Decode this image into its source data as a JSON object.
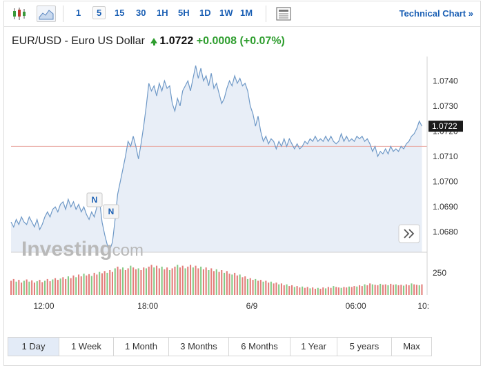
{
  "toolbar": {
    "candle_icon": "candlestick-icon",
    "area_icon": "area-chart-icon",
    "timeframes": [
      "1",
      "5",
      "15",
      "30",
      "1H",
      "5H",
      "1D",
      "1W",
      "1M"
    ],
    "active_timeframe": "5",
    "news_icon": "news-icon",
    "technical_label": "Technical Chart",
    "technical_arrow": "»"
  },
  "header": {
    "instrument": "EUR/USD - Euro US Dollar",
    "price": "1.0722",
    "change": "+0.0008",
    "change_pct": "(+0.07%)",
    "up_color": "#2f9e2f"
  },
  "watermark": {
    "brand": "Investing",
    "suffix": ".com"
  },
  "markers": [
    "N",
    "N"
  ],
  "expand_icon": "double-chevron-right-icon",
  "ranges": [
    "1 Day",
    "1 Week",
    "1 Month",
    "3 Months",
    "6 Months",
    "1 Year",
    "5 years",
    "Max"
  ],
  "active_range": "1 Day",
  "chart_data": {
    "type": "area",
    "title": "",
    "xlabel": "",
    "ylabel": "",
    "ylim": [
      1.0672,
      1.0748
    ],
    "y_ticks": [
      "1.0740",
      "1.0730",
      "1.0720",
      "1.0710",
      "1.0700",
      "1.0690",
      "1.0680"
    ],
    "x_ticks": [
      "12:00",
      "18:00",
      "6/9",
      "06:00",
      "10:"
    ],
    "x_tick_positions": [
      6.3,
      26.3,
      46.3,
      66.3,
      79.3
    ],
    "x_range": [
      0,
      80
    ],
    "current_price": 1.0722,
    "previous_close": 1.0714,
    "previous_close_color": "#e8a7a0",
    "series_color": "#6f99c7",
    "fill_color": "#e8eef7",
    "points": [
      [
        0,
        1.0684
      ],
      [
        0.5,
        1.0682
      ],
      [
        1,
        1.0685
      ],
      [
        1.5,
        1.0683
      ],
      [
        2,
        1.0686
      ],
      [
        2.5,
        1.0684
      ],
      [
        3,
        1.0683
      ],
      [
        3.5,
        1.0686
      ],
      [
        4,
        1.0684
      ],
      [
        4.5,
        1.0682
      ],
      [
        5,
        1.0685
      ],
      [
        5.5,
        1.0681
      ],
      [
        6,
        1.0683
      ],
      [
        6.5,
        1.0686
      ],
      [
        7,
        1.0688
      ],
      [
        7.5,
        1.0686
      ],
      [
        8,
        1.0689
      ],
      [
        8.5,
        1.069
      ],
      [
        9,
        1.0688
      ],
      [
        9.5,
        1.0691
      ],
      [
        10,
        1.0692
      ],
      [
        10.5,
        1.0689
      ],
      [
        11,
        1.0693
      ],
      [
        11.5,
        1.069
      ],
      [
        12,
        1.0692
      ],
      [
        12.5,
        1.0689
      ],
      [
        13,
        1.0691
      ],
      [
        13.5,
        1.0688
      ],
      [
        14,
        1.069
      ],
      [
        14.5,
        1.0687
      ],
      [
        15,
        1.0685
      ],
      [
        15.5,
        1.0688
      ],
      [
        16,
        1.0686
      ],
      [
        16.5,
        1.069
      ],
      [
        17,
        1.0693
      ],
      [
        17.5,
        1.0684
      ],
      [
        18,
        1.0679
      ],
      [
        18.5,
        1.0675
      ],
      [
        19,
        1.0673
      ],
      [
        19.5,
        1.0676
      ],
      [
        20,
        1.0685
      ],
      [
        20.5,
        1.0695
      ],
      [
        21,
        1.07
      ],
      [
        21.5,
        1.0705
      ],
      [
        22,
        1.071
      ],
      [
        22.5,
        1.0716
      ],
      [
        23,
        1.0714
      ],
      [
        23.5,
        1.0718
      ],
      [
        24,
        1.0714
      ],
      [
        24.5,
        1.0709
      ],
      [
        25,
        1.0715
      ],
      [
        25.5,
        1.0722
      ],
      [
        26,
        1.073
      ],
      [
        26.5,
        1.0739
      ],
      [
        27,
        1.0736
      ],
      [
        27.5,
        1.0738
      ],
      [
        28,
        1.0734
      ],
      [
        28.5,
        1.0739
      ],
      [
        29,
        1.0736
      ],
      [
        29.5,
        1.074
      ],
      [
        30,
        1.0737
      ],
      [
        30.5,
        1.0738
      ],
      [
        31,
        1.0731
      ],
      [
        31.5,
        1.0728
      ],
      [
        32,
        1.0733
      ],
      [
        32.5,
        1.073
      ],
      [
        33,
        1.0736
      ],
      [
        33.5,
        1.0738
      ],
      [
        34,
        1.074
      ],
      [
        34.5,
        1.0736
      ],
      [
        35,
        1.0741
      ],
      [
        35.5,
        1.0746
      ],
      [
        36,
        1.0741
      ],
      [
        36.5,
        1.0745
      ],
      [
        37,
        1.074
      ],
      [
        37.5,
        1.0742
      ],
      [
        38,
        1.0738
      ],
      [
        38.5,
        1.0743
      ],
      [
        39,
        1.0737
      ],
      [
        39.5,
        1.0739
      ],
      [
        40,
        1.0735
      ],
      [
        40.5,
        1.0731
      ],
      [
        41,
        1.0733
      ],
      [
        41.5,
        1.0737
      ],
      [
        42,
        1.074
      ],
      [
        42.5,
        1.0738
      ],
      [
        43,
        1.0742
      ],
      [
        43.5,
        1.0739
      ],
      [
        44,
        1.0741
      ],
      [
        44.5,
        1.0738
      ],
      [
        45,
        1.0739
      ],
      [
        45.5,
        1.0736
      ],
      [
        46,
        1.073
      ],
      [
        46.5,
        1.0727
      ],
      [
        47,
        1.0722
      ],
      [
        47.5,
        1.0726
      ],
      [
        48,
        1.072
      ],
      [
        48.5,
        1.0716
      ],
      [
        49,
        1.0718
      ],
      [
        49.5,
        1.0715
      ],
      [
        50,
        1.0717
      ],
      [
        50.5,
        1.0716
      ],
      [
        51,
        1.0713
      ],
      [
        51.5,
        1.0716
      ],
      [
        52,
        1.0714
      ],
      [
        52.5,
        1.0717
      ],
      [
        53,
        1.0714
      ],
      [
        53.5,
        1.0717
      ],
      [
        54,
        1.0715
      ],
      [
        54.5,
        1.0713
      ],
      [
        55,
        1.0715
      ],
      [
        55.5,
        1.0713
      ],
      [
        56,
        1.0714
      ],
      [
        56.5,
        1.0716
      ],
      [
        57,
        1.0715
      ],
      [
        57.5,
        1.0717
      ],
      [
        58,
        1.0716
      ],
      [
        58.5,
        1.0718
      ],
      [
        59,
        1.0716
      ],
      [
        59.5,
        1.0717
      ],
      [
        60,
        1.0716
      ],
      [
        60.5,
        1.0718
      ],
      [
        61,
        1.0716
      ],
      [
        61.5,
        1.0718
      ],
      [
        62,
        1.0716
      ],
      [
        62.5,
        1.0715
      ],
      [
        63,
        1.0716
      ],
      [
        63.5,
        1.0719
      ],
      [
        64,
        1.0716
      ],
      [
        64.5,
        1.0718
      ],
      [
        65,
        1.0716
      ],
      [
        65.5,
        1.0717
      ],
      [
        66,
        1.0716
      ],
      [
        66.5,
        1.0718
      ],
      [
        67,
        1.0717
      ],
      [
        67.5,
        1.0718
      ],
      [
        68,
        1.0716
      ],
      [
        68.5,
        1.0717
      ],
      [
        69,
        1.0715
      ],
      [
        69.5,
        1.0712
      ],
      [
        70,
        1.0714
      ],
      [
        70.5,
        1.071
      ],
      [
        71,
        1.0712
      ],
      [
        71.5,
        1.0711
      ],
      [
        72,
        1.0713
      ],
      [
        72.5,
        1.0711
      ],
      [
        73,
        1.0714
      ],
      [
        73.5,
        1.0712
      ],
      [
        74,
        1.0713
      ],
      [
        74.5,
        1.0712
      ],
      [
        75,
        1.0714
      ],
      [
        75.5,
        1.0713
      ],
      [
        76,
        1.0715
      ],
      [
        76.5,
        1.0716
      ],
      [
        77,
        1.0718
      ],
      [
        77.5,
        1.0719
      ],
      [
        78,
        1.0721
      ],
      [
        78.5,
        1.0724
      ],
      [
        79,
        1.0722
      ]
    ],
    "volume_label": "250",
    "volume_ylim": [
      0,
      420
    ],
    "volume": [
      [
        0,
        160,
        1
      ],
      [
        0.5,
        180,
        1
      ],
      [
        1,
        150,
        0
      ],
      [
        1.5,
        170,
        1
      ],
      [
        2,
        140,
        1
      ],
      [
        2.5,
        160,
        0
      ],
      [
        3,
        175,
        1
      ],
      [
        3.5,
        150,
        0
      ],
      [
        4,
        165,
        1
      ],
      [
        4.5,
        140,
        1
      ],
      [
        5,
        155,
        0
      ],
      [
        5.5,
        170,
        1
      ],
      [
        6,
        145,
        1
      ],
      [
        6.5,
        160,
        0
      ],
      [
        7,
        180,
        1
      ],
      [
        7.5,
        155,
        1
      ],
      [
        8,
        175,
        0
      ],
      [
        8.5,
        190,
        1
      ],
      [
        9,
        170,
        1
      ],
      [
        9.5,
        185,
        0
      ],
      [
        10,
        200,
        1
      ],
      [
        10.5,
        180,
        1
      ],
      [
        11,
        210,
        0
      ],
      [
        11.5,
        190,
        1
      ],
      [
        12,
        220,
        1
      ],
      [
        12.5,
        200,
        0
      ],
      [
        13,
        230,
        1
      ],
      [
        13.5,
        210,
        1
      ],
      [
        14,
        240,
        0
      ],
      [
        14.5,
        220,
        1
      ],
      [
        15,
        235,
        1
      ],
      [
        15.5,
        215,
        0
      ],
      [
        16,
        250,
        1
      ],
      [
        16.5,
        230,
        1
      ],
      [
        17,
        260,
        0
      ],
      [
        17.5,
        245,
        1
      ],
      [
        18,
        270,
        1
      ],
      [
        18.5,
        250,
        0
      ],
      [
        19,
        280,
        1
      ],
      [
        19.5,
        260,
        1
      ],
      [
        20,
        300,
        0
      ],
      [
        20.5,
        320,
        1
      ],
      [
        21,
        290,
        1
      ],
      [
        21.5,
        310,
        0
      ],
      [
        22,
        280,
        1
      ],
      [
        22.5,
        300,
        1
      ],
      [
        23,
        330,
        0
      ],
      [
        23.5,
        310,
        1
      ],
      [
        24,
        290,
        1
      ],
      [
        24.5,
        300,
        0
      ],
      [
        25,
        280,
        1
      ],
      [
        25.5,
        310,
        1
      ],
      [
        26,
        300,
        0
      ],
      [
        26.5,
        320,
        1
      ],
      [
        27,
        340,
        1
      ],
      [
        27.5,
        310,
        0
      ],
      [
        28,
        330,
        1
      ],
      [
        28.5,
        300,
        1
      ],
      [
        29,
        320,
        0
      ],
      [
        29.5,
        290,
        1
      ],
      [
        30,
        310,
        1
      ],
      [
        30.5,
        280,
        0
      ],
      [
        31,
        300,
        1
      ],
      [
        31.5,
        320,
        1
      ],
      [
        32,
        340,
        0
      ],
      [
        32.5,
        310,
        1
      ],
      [
        33,
        330,
        1
      ],
      [
        33.5,
        300,
        0
      ],
      [
        34,
        320,
        1
      ],
      [
        34.5,
        340,
        1
      ],
      [
        35,
        310,
        0
      ],
      [
        35.5,
        330,
        1
      ],
      [
        36,
        300,
        1
      ],
      [
        36.5,
        320,
        0
      ],
      [
        37,
        290,
        1
      ],
      [
        37.5,
        310,
        1
      ],
      [
        38,
        280,
        0
      ],
      [
        38.5,
        300,
        1
      ],
      [
        39,
        270,
        1
      ],
      [
        39.5,
        290,
        0
      ],
      [
        40,
        260,
        1
      ],
      [
        40.5,
        280,
        1
      ],
      [
        41,
        250,
        0
      ],
      [
        41.5,
        270,
        1
      ],
      [
        42,
        240,
        1
      ],
      [
        42.5,
        230,
        0
      ],
      [
        43,
        250,
        1
      ],
      [
        43.5,
        220,
        1
      ],
      [
        44,
        230,
        0
      ],
      [
        44.5,
        200,
        1
      ],
      [
        45,
        210,
        1
      ],
      [
        45.5,
        180,
        0
      ],
      [
        46,
        190,
        1
      ],
      [
        46.5,
        170,
        1
      ],
      [
        47,
        180,
        0
      ],
      [
        47.5,
        160,
        1
      ],
      [
        48,
        170,
        1
      ],
      [
        48.5,
        150,
        0
      ],
      [
        49,
        160,
        1
      ],
      [
        49.5,
        140,
        1
      ],
      [
        50,
        150,
        0
      ],
      [
        50.5,
        130,
        1
      ],
      [
        51,
        140,
        1
      ],
      [
        51.5,
        120,
        0
      ],
      [
        52,
        130,
        1
      ],
      [
        52.5,
        110,
        1
      ],
      [
        53,
        120,
        0
      ],
      [
        53.5,
        100,
        1
      ],
      [
        54,
        110,
        1
      ],
      [
        54.5,
        90,
        0
      ],
      [
        55,
        100,
        1
      ],
      [
        55.5,
        85,
        1
      ],
      [
        56,
        95,
        0
      ],
      [
        56.5,
        80,
        1
      ],
      [
        57,
        90,
        1
      ],
      [
        57.5,
        75,
        0
      ],
      [
        58,
        85,
        1
      ],
      [
        58.5,
        70,
        1
      ],
      [
        59,
        80,
        0
      ],
      [
        59.5,
        70,
        1
      ],
      [
        60,
        85,
        1
      ],
      [
        60.5,
        75,
        0
      ],
      [
        61,
        90,
        1
      ],
      [
        61.5,
        80,
        1
      ],
      [
        62,
        100,
        0
      ],
      [
        62.5,
        90,
        1
      ],
      [
        63,
        85,
        1
      ],
      [
        63.5,
        80,
        0
      ],
      [
        64,
        90,
        1
      ],
      [
        64.5,
        85,
        1
      ],
      [
        65,
        95,
        0
      ],
      [
        65.5,
        90,
        1
      ],
      [
        66,
        100,
        1
      ],
      [
        66.5,
        95,
        0
      ],
      [
        67,
        110,
        1
      ],
      [
        67.5,
        100,
        1
      ],
      [
        68,
        120,
        0
      ],
      [
        68.5,
        110,
        1
      ],
      [
        69,
        130,
        1
      ],
      [
        69.5,
        120,
        0
      ],
      [
        70,
        115,
        1
      ],
      [
        70.5,
        110,
        1
      ],
      [
        71,
        125,
        0
      ],
      [
        71.5,
        115,
        1
      ],
      [
        72,
        120,
        1
      ],
      [
        72.5,
        110,
        0
      ],
      [
        73,
        125,
        1
      ],
      [
        73.5,
        115,
        1
      ],
      [
        74,
        120,
        0
      ],
      [
        74.5,
        110,
        1
      ],
      [
        75,
        115,
        1
      ],
      [
        75.5,
        105,
        0
      ],
      [
        76,
        120,
        1
      ],
      [
        76.5,
        110,
        1
      ],
      [
        77,
        130,
        0
      ],
      [
        77.5,
        120,
        1
      ],
      [
        78,
        115,
        1
      ],
      [
        78.5,
        110,
        0
      ],
      [
        79,
        120,
        1
      ]
    ]
  }
}
